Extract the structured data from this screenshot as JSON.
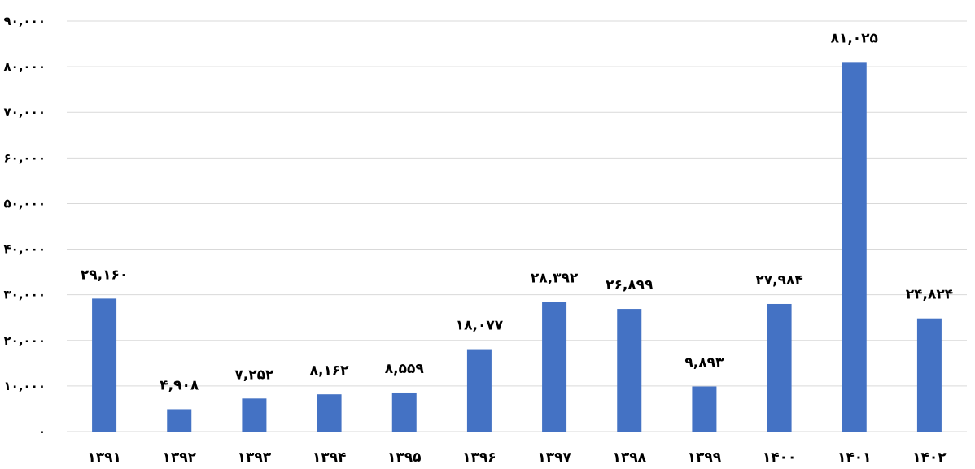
{
  "chart_data": {
    "type": "bar",
    "categories": [
      "۱۳۹۱",
      "۱۳۹۲",
      "۱۳۹۳",
      "۱۳۹۴",
      "۱۳۹۵",
      "۱۳۹۶",
      "۱۳۹۷",
      "۱۳۹۸",
      "۱۳۹۹",
      "۱۴۰۰",
      "۱۴۰۱",
      "۱۴۰۲"
    ],
    "values": [
      29160,
      4908,
      7252,
      8162,
      8559,
      18077,
      28392,
      26899,
      9893,
      27984,
      81025,
      24824
    ],
    "data_labels": [
      "۲۹,۱۶۰",
      "۴,۹۰۸",
      "۷,۲۵۲",
      "۸,۱۶۲",
      "۸,۵۵۹",
      "۱۸,۰۷۷",
      "۲۸,۳۹۲",
      "۲۶,۸۹۹",
      "۹,۸۹۳",
      "۲۷,۹۸۴",
      "۸۱,۰۲۵",
      "۲۴,۸۲۴"
    ],
    "y_ticks": [
      0,
      10000,
      20000,
      30000,
      40000,
      50000,
      60000,
      70000,
      80000,
      90000
    ],
    "y_tick_labels": [
      "۰",
      "۱۰,۰۰۰",
      "۲۰,۰۰۰",
      "۳۰,۰۰۰",
      "۴۰,۰۰۰",
      "۵۰,۰۰۰",
      "۶۰,۰۰۰",
      "۷۰,۰۰۰",
      "۸۰,۰۰۰",
      "۹۰,۰۰۰"
    ],
    "ylim": [
      0,
      90000
    ],
    "title": "",
    "xlabel": "",
    "ylabel": "",
    "grid": true,
    "legend": "none",
    "colors": {
      "bar": "#4472C4",
      "gridline": "#D9D9D9",
      "text": "#000000"
    }
  }
}
